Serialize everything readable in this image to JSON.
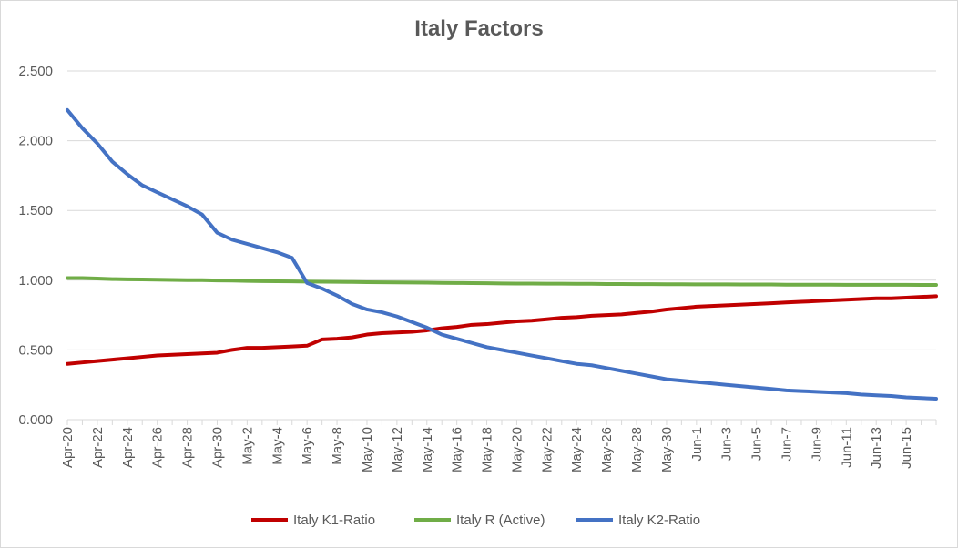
{
  "chart_data": {
    "type": "line",
    "title": "Italy Factors",
    "xlabel": "",
    "ylabel": "",
    "ylim": [
      0,
      2.5
    ],
    "y_ticks": [
      "0.000",
      "0.500",
      "1.000",
      "1.500",
      "2.000",
      "2.500"
    ],
    "y_tick_values": [
      0,
      0.5,
      1.0,
      1.5,
      2.0,
      2.5
    ],
    "x_labels": [
      "Apr-20",
      "Apr-22",
      "Apr-24",
      "Apr-26",
      "Apr-28",
      "Apr-30",
      "May-2",
      "May-4",
      "May-6",
      "May-8",
      "May-10",
      "May-12",
      "May-14",
      "May-16",
      "May-18",
      "May-20",
      "May-22",
      "May-24",
      "May-26",
      "May-28",
      "May-30",
      "Jun-1",
      "Jun-3",
      "Jun-5",
      "Jun-7",
      "Jun-9",
      "Jun-11",
      "Jun-13",
      "Jun-15"
    ],
    "grid": true,
    "legend_position": "bottom",
    "series": [
      {
        "name": "Italy K1-Ratio",
        "color": "#c00000",
        "values": [
          0.4,
          0.41,
          0.42,
          0.43,
          0.44,
          0.45,
          0.46,
          0.465,
          0.47,
          0.475,
          0.48,
          0.5,
          0.515,
          0.515,
          0.52,
          0.525,
          0.53,
          0.575,
          0.58,
          0.59,
          0.61,
          0.62,
          0.625,
          0.63,
          0.64,
          0.655,
          0.665,
          0.68,
          0.685,
          0.695,
          0.705,
          0.71,
          0.72,
          0.73,
          0.735,
          0.745,
          0.75,
          0.755,
          0.765,
          0.775,
          0.79,
          0.8,
          0.81,
          0.815,
          0.82,
          0.825,
          0.83,
          0.835,
          0.84,
          0.845,
          0.85,
          0.855,
          0.86,
          0.865,
          0.87,
          0.87,
          0.875,
          0.88,
          0.885
        ]
      },
      {
        "name": "Italy R (Active)",
        "color": "#70ad47",
        "values": [
          1.015,
          1.015,
          1.012,
          1.008,
          1.006,
          1.005,
          1.004,
          1.002,
          1.0,
          1.0,
          0.998,
          0.997,
          0.995,
          0.993,
          0.992,
          0.991,
          0.99,
          0.989,
          0.988,
          0.987,
          0.986,
          0.985,
          0.984,
          0.983,
          0.982,
          0.981,
          0.98,
          0.979,
          0.978,
          0.977,
          0.976,
          0.976,
          0.975,
          0.975,
          0.974,
          0.974,
          0.973,
          0.973,
          0.972,
          0.972,
          0.971,
          0.971,
          0.97,
          0.97,
          0.97,
          0.969,
          0.969,
          0.969,
          0.968,
          0.968,
          0.968,
          0.968,
          0.967,
          0.967,
          0.967,
          0.967,
          0.967,
          0.966,
          0.966
        ]
      },
      {
        "name": "Italy K2-Ratio",
        "color": "#4472c4",
        "values": [
          2.22,
          2.09,
          1.98,
          1.85,
          1.76,
          1.68,
          1.63,
          1.58,
          1.53,
          1.47,
          1.34,
          1.29,
          1.26,
          1.23,
          1.2,
          1.16,
          0.98,
          0.94,
          0.89,
          0.83,
          0.79,
          0.77,
          0.74,
          0.7,
          0.66,
          0.61,
          0.58,
          0.55,
          0.52,
          0.5,
          0.48,
          0.46,
          0.44,
          0.42,
          0.4,
          0.39,
          0.37,
          0.35,
          0.33,
          0.31,
          0.29,
          0.28,
          0.27,
          0.26,
          0.25,
          0.24,
          0.23,
          0.22,
          0.21,
          0.205,
          0.2,
          0.195,
          0.19,
          0.18,
          0.175,
          0.17,
          0.16,
          0.155,
          0.15
        ]
      }
    ]
  }
}
